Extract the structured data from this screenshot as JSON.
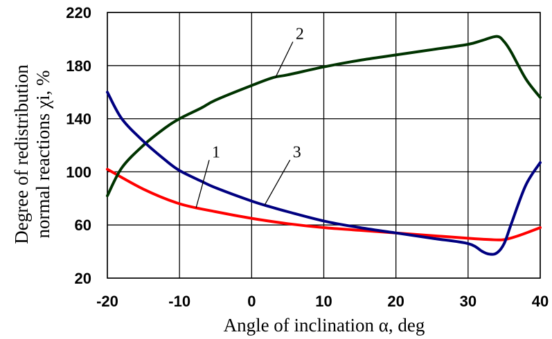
{
  "chart_data": {
    "type": "line",
    "xlabel": "Angle of inclination α, deg",
    "ylabel_line1": "Degree of redistribution",
    "ylabel_line2": "normal reactions χi, %",
    "xlim": [
      -20,
      40
    ],
    "ylim": [
      20,
      220
    ],
    "x_ticks": [
      "-20",
      "-10",
      "0",
      "10",
      "20",
      "30",
      "40"
    ],
    "y_ticks": [
      "20",
      "60",
      "100",
      "140",
      "180",
      "220"
    ],
    "grid": true,
    "series": [
      {
        "name": "1",
        "color": "#ff0000",
        "x": [
          -20,
          -15,
          -10,
          -5,
          0,
          5,
          10,
          15,
          20,
          25,
          30,
          33,
          35,
          37,
          40
        ],
        "y": [
          102,
          87,
          76,
          70,
          65,
          61,
          58,
          56,
          54,
          52,
          50,
          49,
          49,
          52,
          58
        ]
      },
      {
        "name": "2",
        "color": "#003300",
        "x": [
          -20,
          -18,
          -15,
          -12,
          -10,
          -7,
          -5,
          0,
          3,
          5,
          10,
          15,
          20,
          25,
          30,
          32,
          34,
          35,
          36,
          38,
          40
        ],
        "y": [
          82,
          103,
          120,
          133,
          140,
          148,
          154,
          165,
          171,
          173,
          179,
          184,
          188,
          192,
          196,
          199,
          202,
          198,
          190,
          170,
          156
        ]
      },
      {
        "name": "3",
        "color": "#000080",
        "x": [
          -20,
          -18,
          -15,
          -12,
          -10,
          -7,
          -5,
          0,
          3,
          5,
          10,
          15,
          20,
          25,
          30,
          32,
          33,
          34,
          35,
          36,
          38,
          40
        ],
        "y": [
          160,
          140,
          123,
          109,
          101,
          93,
          88,
          78,
          73,
          70,
          63,
          58,
          54,
          50,
          46,
          40,
          38,
          39,
          46,
          61,
          90,
          107
        ]
      }
    ],
    "labels": [
      {
        "text": "1",
        "x": -5.5,
        "y": 111,
        "target_x": -7.7,
        "target_y": 73
      },
      {
        "text": "3",
        "x": 5.7,
        "y": 111,
        "target_x": 1.8,
        "target_y": 75
      },
      {
        "text": "2",
        "x": 6.1,
        "y": 200,
        "target_x": 3.3,
        "target_y": 171
      }
    ]
  }
}
